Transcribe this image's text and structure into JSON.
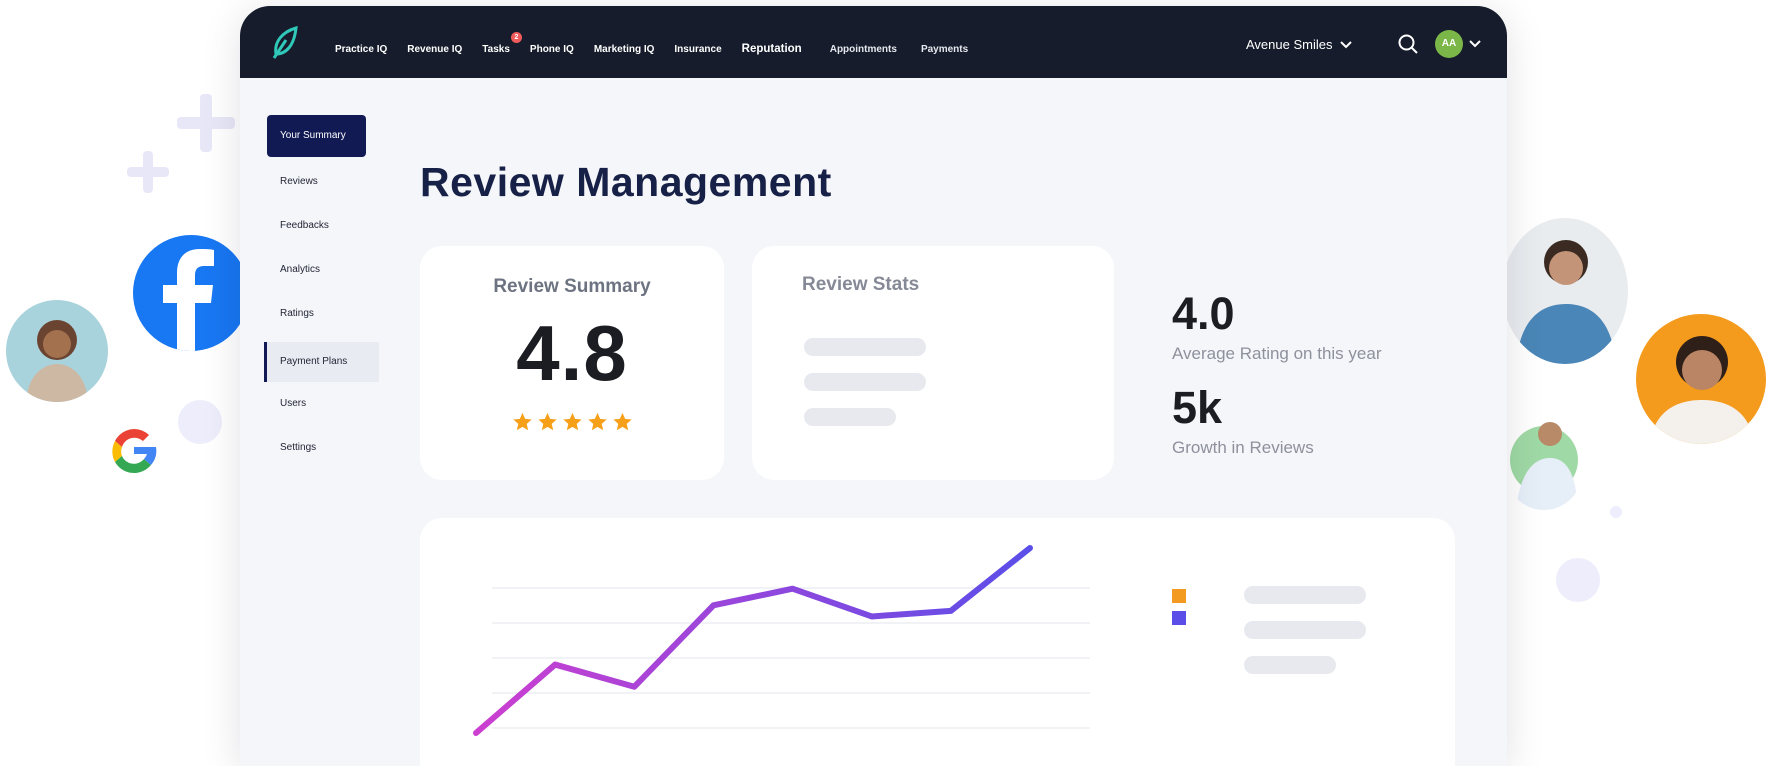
{
  "app": {
    "nav": [
      {
        "label": "Practice IQ"
      },
      {
        "label": "Revenue IQ"
      },
      {
        "label": "Tasks",
        "badge": "2"
      },
      {
        "label": "Phone IQ"
      },
      {
        "label": "Marketing IQ"
      },
      {
        "label": "Insurance"
      },
      {
        "label": "Reputation",
        "active": true
      },
      {
        "label": "Appointments"
      },
      {
        "label": "Payments"
      }
    ],
    "practice_name": "Avenue Smiles",
    "user_initials": "AA"
  },
  "sidebar": {
    "items": [
      {
        "label": "Your Summary",
        "state": "active"
      },
      {
        "label": "Reviews"
      },
      {
        "label": "Feedbacks"
      },
      {
        "label": "Analytics"
      },
      {
        "label": "Ratings"
      },
      {
        "label": "Payment Plans",
        "state": "hover"
      },
      {
        "label": "Users"
      },
      {
        "label": "Settings"
      }
    ]
  },
  "main": {
    "title": "Review Management",
    "review_summary": {
      "title": "Review Summary",
      "value": "4.8",
      "stars": 5
    },
    "review_stats": {
      "title": "Review Stats"
    },
    "kpis": [
      {
        "value": "4.0",
        "label": "Average Rating on this year"
      },
      {
        "value": "5k",
        "label": "Growth in Reviews"
      }
    ]
  },
  "chart_data": {
    "type": "line",
    "title": "",
    "xlabel": "",
    "ylabel": "",
    "x": [
      0,
      1,
      2,
      3,
      4,
      5,
      6,
      7
    ],
    "series": [
      {
        "values": [
          0.0,
          0.37,
          0.25,
          0.69,
          0.78,
          0.63,
          0.66,
          1.0
        ]
      }
    ],
    "ylim": [
      0,
      1
    ],
    "grid": true,
    "legend_colors": [
      "#f29b20",
      "#5b4ee8"
    ]
  },
  "colors": {
    "topbar": "#161c2b",
    "accent_navy": "#111a52",
    "star": "#f6a01a",
    "line_start": "#cc3fd0",
    "line_end": "#5b4ee8"
  }
}
